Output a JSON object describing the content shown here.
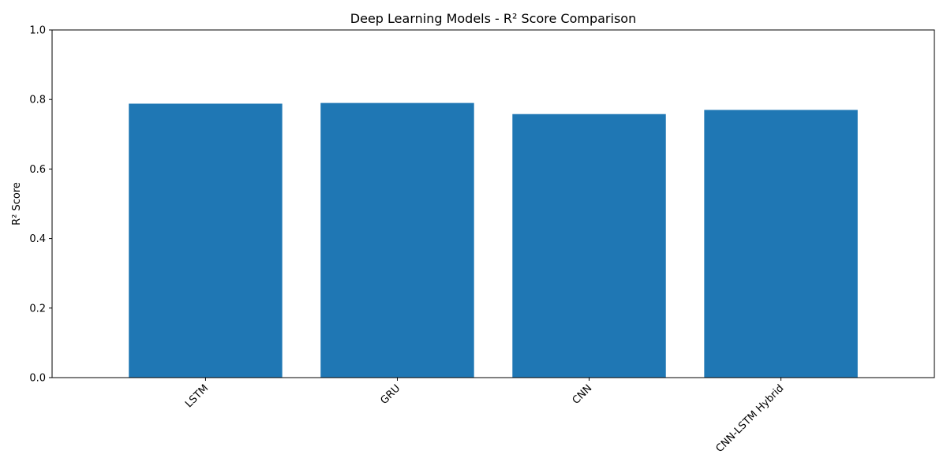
{
  "chart_data": {
    "type": "bar",
    "title": "Deep Learning Models - R² Score Comparison",
    "xlabel": "",
    "ylabel": "R² Score",
    "categories": [
      "LSTM",
      "GRU",
      "CNN",
      "CNN-LSTM Hybrid"
    ],
    "values": [
      0.788,
      0.79,
      0.758,
      0.77
    ],
    "ylim": [
      0,
      1.0
    ],
    "yticks": [
      "0.0",
      "0.2",
      "0.4",
      "0.6",
      "0.8",
      "1.0"
    ],
    "bar_color": "#1f77b4",
    "grid": false,
    "legend": "none"
  }
}
